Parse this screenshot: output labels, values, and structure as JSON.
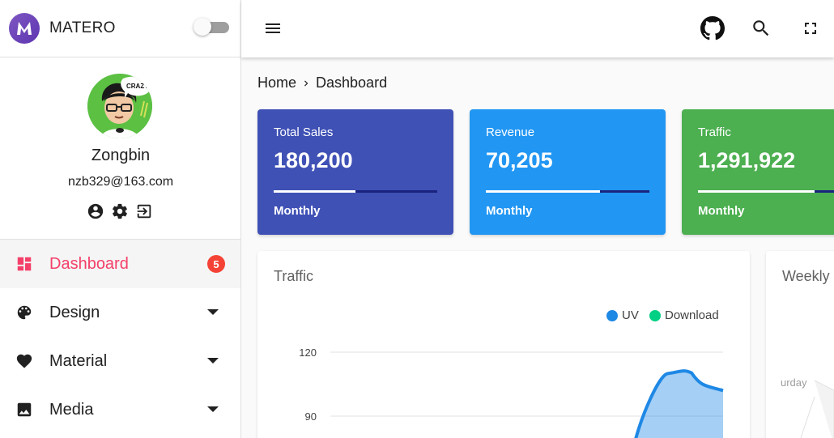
{
  "app": {
    "name": "MATERO",
    "logo_letter": "M"
  },
  "user": {
    "name": "Zongbin",
    "email": "nzb329@163.com",
    "avatar_text": "CRAZY"
  },
  "profile_actions": [
    "account-circle-icon",
    "settings-icon",
    "logout-icon"
  ],
  "menu": {
    "items": [
      {
        "label": "Dashboard",
        "icon": "dashboard-icon",
        "badge": "5",
        "active": true
      },
      {
        "label": "Design",
        "icon": "palette-icon",
        "expandable": true
      },
      {
        "label": "Material",
        "icon": "heart-icon",
        "expandable": true
      },
      {
        "label": "Media",
        "icon": "image-icon",
        "expandable": true
      }
    ]
  },
  "topbar": {
    "icons": [
      "menu-icon",
      "github-icon",
      "search-icon",
      "fullscreen-icon"
    ]
  },
  "breadcrumb": {
    "home": "Home",
    "current": "Dashboard"
  },
  "stats": [
    {
      "title": "Total Sales",
      "value": "180,200",
      "period": "Monthly",
      "progress": 0.5,
      "color": "#3f51b5"
    },
    {
      "title": "Revenue",
      "value": "70,205",
      "period": "Monthly",
      "progress": 0.7,
      "color": "#2196f3"
    },
    {
      "title": "Traffic",
      "value": "1,291,922",
      "period": "Monthly",
      "progress": 0.8,
      "color": "#4caf50"
    }
  ],
  "traffic_card": {
    "title": "Traffic",
    "chart_data": {
      "type": "area",
      "title": "",
      "series": [
        {
          "name": "UV",
          "color": "#1e88e5"
        },
        {
          "name": "Download",
          "color": "#00d084"
        }
      ],
      "ytick_labels": [
        "120",
        "90"
      ],
      "visible_points": [
        {
          "x": 0.86,
          "y": 110
        },
        {
          "x": 0.92,
          "y": 111
        },
        {
          "x": 1.0,
          "y": 102
        }
      ]
    }
  },
  "weekly_card": {
    "title": "Weekly R",
    "axis_fragment": "urday"
  }
}
